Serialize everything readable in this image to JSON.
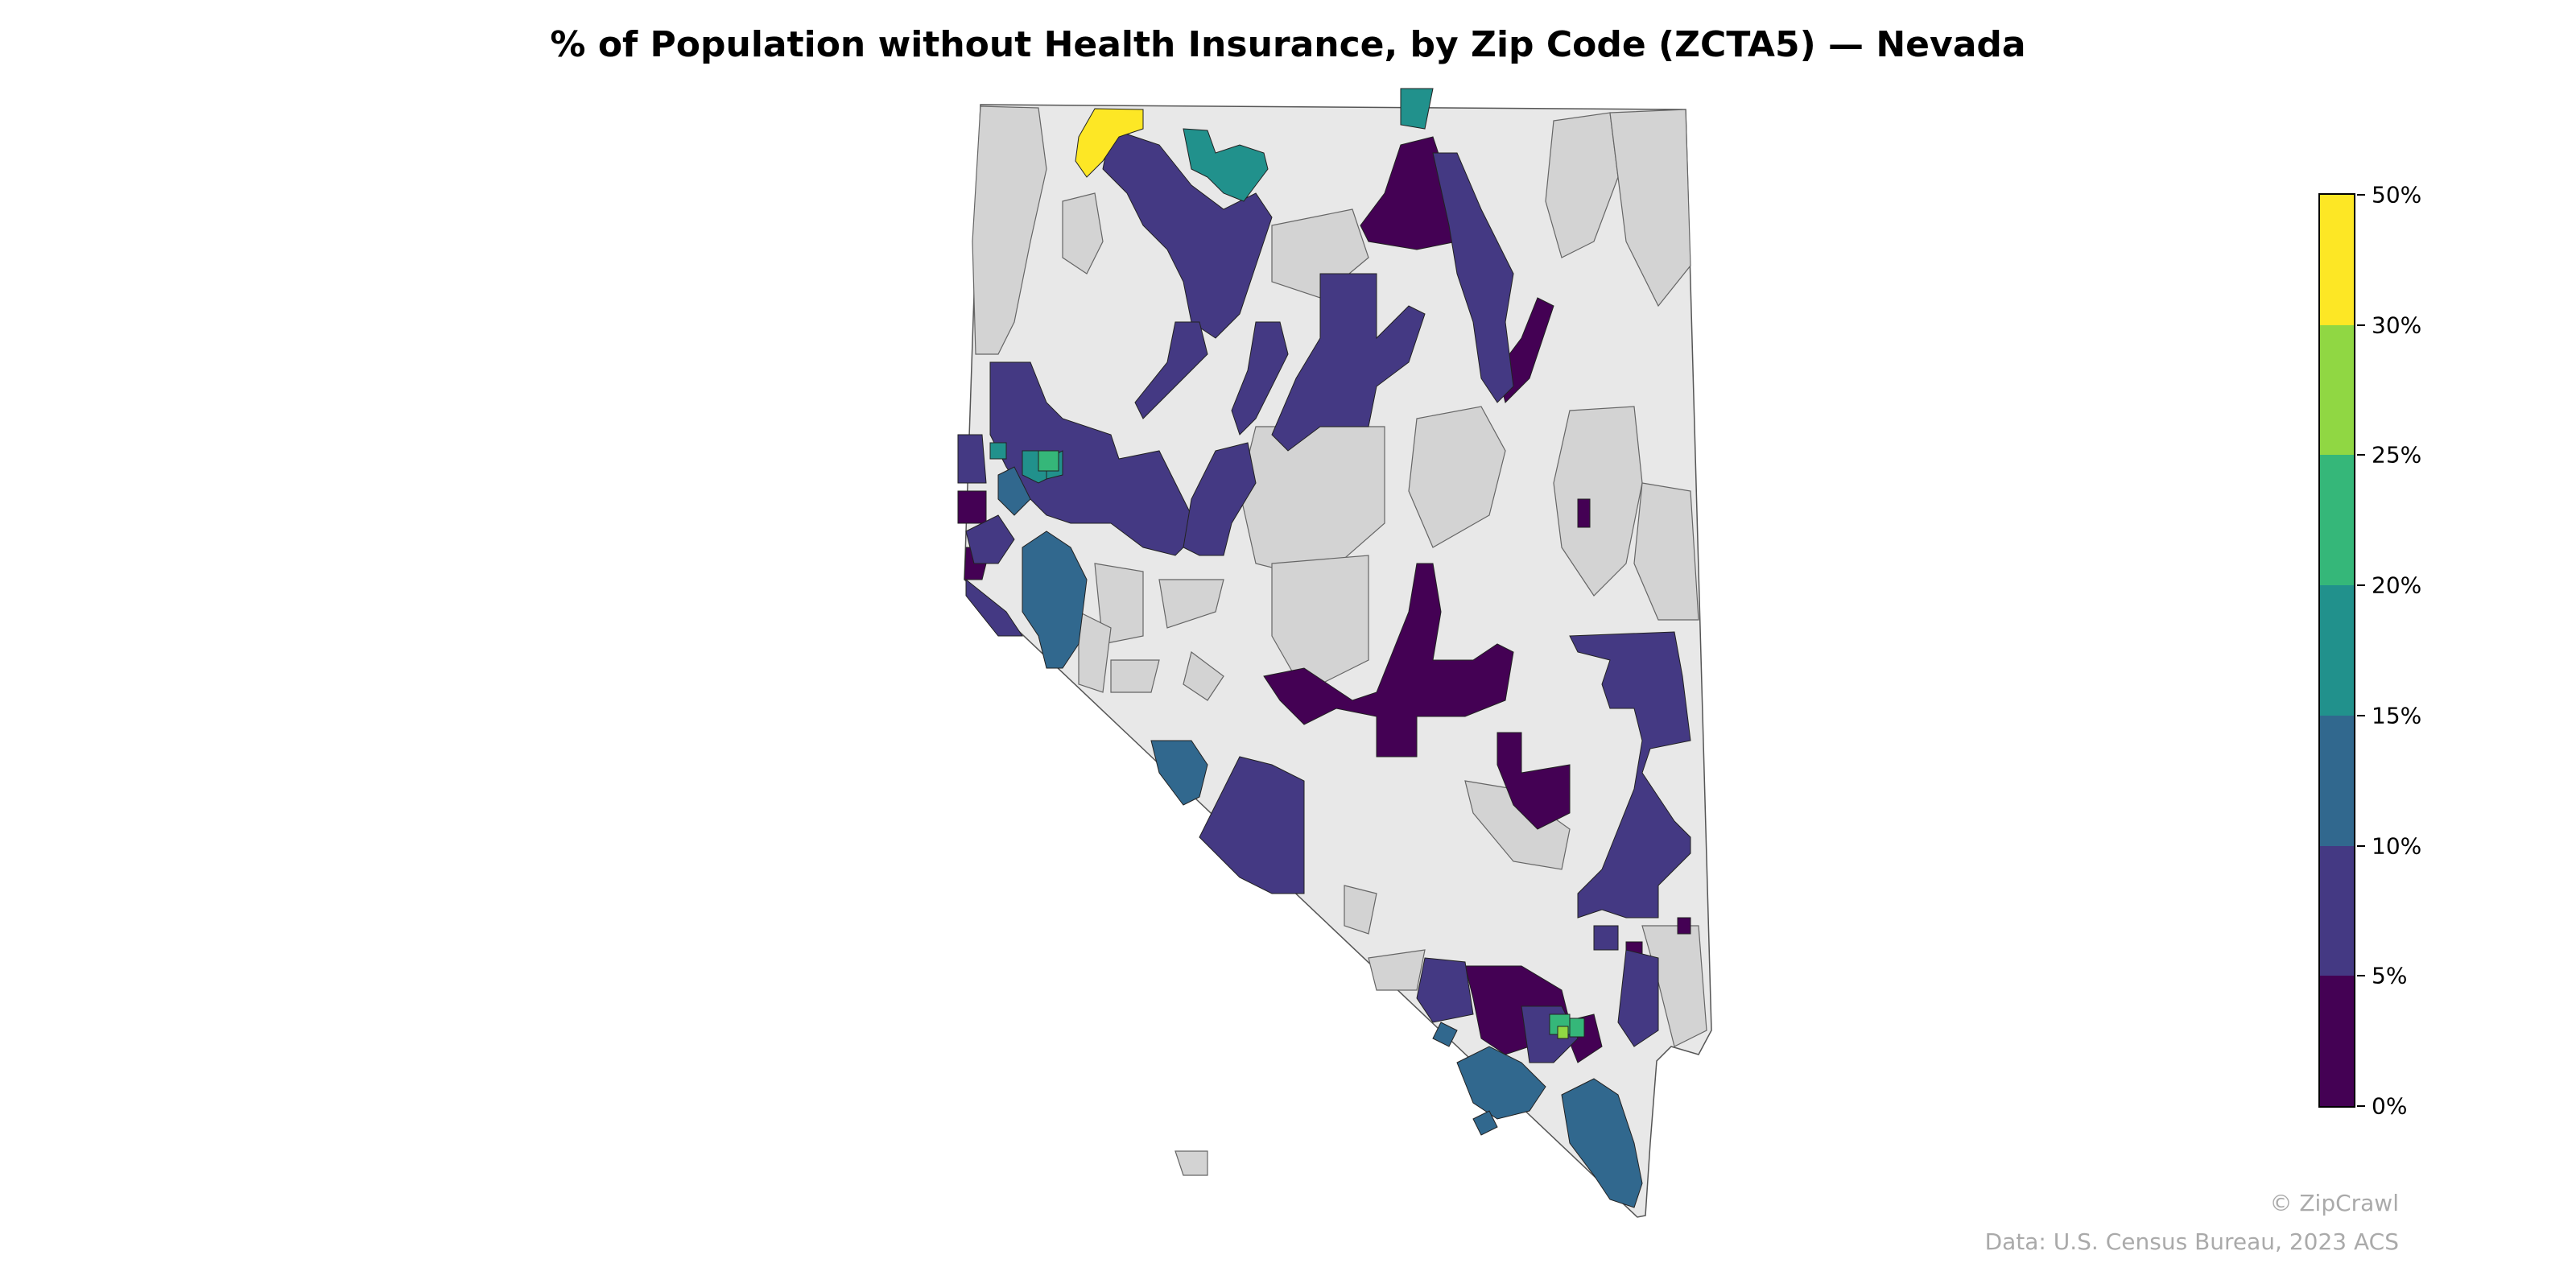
{
  "title": "% of Population without Health Insurance, by Zip Code (ZCTA5) — Nevada",
  "legend": {
    "bands": [
      {
        "from": "0%",
        "to": "5%",
        "color": "#440154"
      },
      {
        "from": "5%",
        "to": "10%",
        "color": "#443983"
      },
      {
        "from": "10%",
        "to": "15%",
        "color": "#31688e"
      },
      {
        "from": "15%",
        "to": "20%",
        "color": "#21918c"
      },
      {
        "from": "20%",
        "to": "25%",
        "color": "#35b779"
      },
      {
        "from": "25%",
        "to": "30%",
        "color": "#90d743"
      },
      {
        "from": "30%",
        "to": "50%",
        "color": "#fde725"
      }
    ],
    "tick_labels": [
      "0%",
      "5%",
      "10%",
      "15%",
      "20%",
      "25%",
      "30%",
      "50%"
    ]
  },
  "colors": {
    "no_data": "#d3d3d3",
    "state_background": "#e8e8e8",
    "border": "#555555"
  },
  "credits": {
    "brand": "© ZipCrawl",
    "source": "Data: U.S. Census Bureau, 2023 ACS"
  }
}
